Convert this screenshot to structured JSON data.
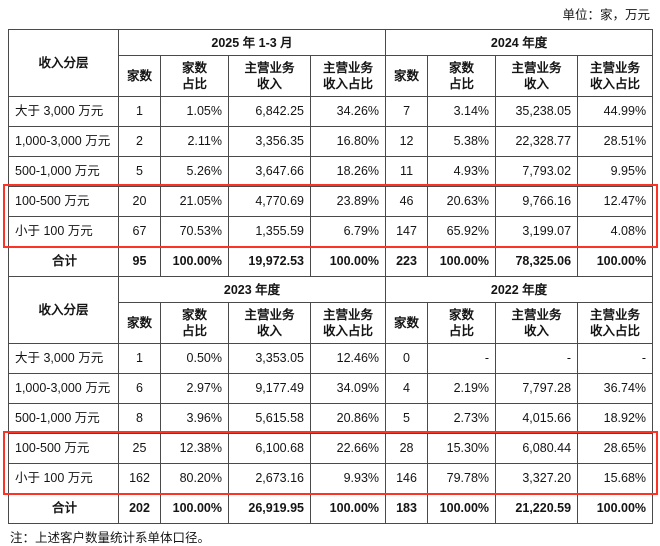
{
  "unit_note": "单位：家，万元",
  "footnote": "注：上述客户数量统计系单体口径。",
  "colors": {
    "highlight_border": "#ff3226",
    "table_border": "#4a4a4a"
  },
  "header": {
    "row_label": "收入分层",
    "sub_columns": [
      "家数",
      "家数\n占比",
      "主营业务\n收入",
      "主营业务\n收入占比"
    ]
  },
  "tables": [
    {
      "periods": [
        "2025 年 1-3 月",
        "2024 年度"
      ],
      "rows": [
        {
          "label": "大于 3,000 万元",
          "highlight": false,
          "total": false,
          "values": [
            "1",
            "1.05%",
            "6,842.25",
            "34.26%",
            "7",
            "3.14%",
            "35,238.05",
            "44.99%"
          ]
        },
        {
          "label": "1,000-3,000 万元",
          "highlight": false,
          "total": false,
          "values": [
            "2",
            "2.11%",
            "3,356.35",
            "16.80%",
            "12",
            "5.38%",
            "22,328.77",
            "28.51%"
          ]
        },
        {
          "label": "500-1,000 万元",
          "highlight": false,
          "total": false,
          "values": [
            "5",
            "5.26%",
            "3,647.66",
            "18.26%",
            "11",
            "4.93%",
            "7,793.02",
            "9.95%"
          ]
        },
        {
          "label": "100-500 万元",
          "highlight": true,
          "total": false,
          "values": [
            "20",
            "21.05%",
            "4,770.69",
            "23.89%",
            "46",
            "20.63%",
            "9,766.16",
            "12.47%"
          ]
        },
        {
          "label": "小于 100 万元",
          "highlight": true,
          "total": false,
          "values": [
            "67",
            "70.53%",
            "1,355.59",
            "6.79%",
            "147",
            "65.92%",
            "3,199.07",
            "4.08%"
          ]
        },
        {
          "label": "合计",
          "highlight": false,
          "total": true,
          "values": [
            "95",
            "100.00%",
            "19,972.53",
            "100.00%",
            "223",
            "100.00%",
            "78,325.06",
            "100.00%"
          ]
        }
      ]
    },
    {
      "periods": [
        "2023 年度",
        "2022 年度"
      ],
      "rows": [
        {
          "label": "大于 3,000 万元",
          "highlight": false,
          "total": false,
          "values": [
            "1",
            "0.50%",
            "3,353.05",
            "12.46%",
            "0",
            "-",
            "-",
            "-"
          ]
        },
        {
          "label": "1,000-3,000 万元",
          "highlight": false,
          "total": false,
          "values": [
            "6",
            "2.97%",
            "9,177.49",
            "34.09%",
            "4",
            "2.19%",
            "7,797.28",
            "36.74%"
          ]
        },
        {
          "label": "500-1,000 万元",
          "highlight": false,
          "total": false,
          "values": [
            "8",
            "3.96%",
            "5,615.58",
            "20.86%",
            "5",
            "2.73%",
            "4,015.66",
            "18.92%"
          ]
        },
        {
          "label": "100-500 万元",
          "highlight": true,
          "total": false,
          "values": [
            "25",
            "12.38%",
            "6,100.68",
            "22.66%",
            "28",
            "15.30%",
            "6,080.44",
            "28.65%"
          ]
        },
        {
          "label": "小于 100 万元",
          "highlight": true,
          "total": false,
          "values": [
            "162",
            "80.20%",
            "2,673.16",
            "9.93%",
            "146",
            "79.78%",
            "3,327.20",
            "15.68%"
          ]
        },
        {
          "label": "合计",
          "highlight": false,
          "total": true,
          "values": [
            "202",
            "100.00%",
            "26,919.95",
            "100.00%",
            "183",
            "100.00%",
            "21,220.59",
            "100.00%"
          ]
        }
      ]
    }
  ]
}
